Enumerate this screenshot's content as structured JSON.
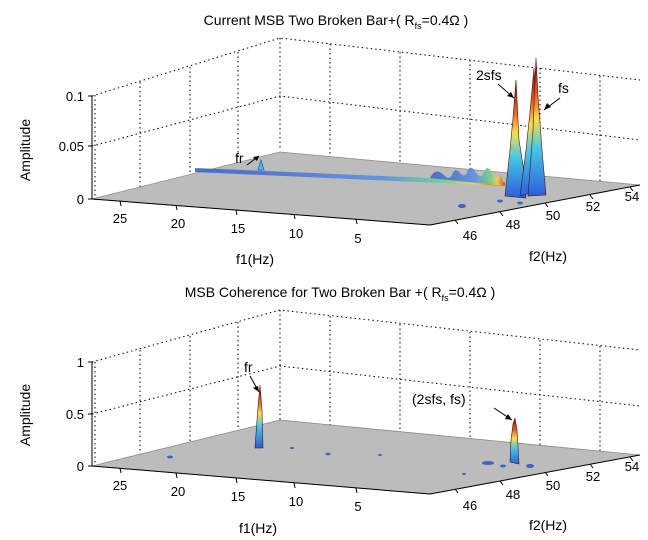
{
  "chart_data": [
    {
      "type": "surface",
      "title_main": "Current MSB Two Broken Bar+( R",
      "title_sub": "fs",
      "title_end": "=0.4Ω )",
      "xlabel": "f1(Hz)",
      "ylabel": "f2(Hz)",
      "zlabel": "Amplitude",
      "x_ticks": [
        "25",
        "20",
        "15",
        "10",
        "5"
      ],
      "y_ticks": [
        "46",
        "48",
        "50",
        "52",
        "54"
      ],
      "z_ticks": [
        "0",
        "0.05",
        "0.1"
      ],
      "xlim": [
        0,
        28
      ],
      "ylim": [
        45,
        55
      ],
      "zlim": [
        0,
        0.12
      ],
      "peaks": [
        {
          "label": "fr",
          "f1": 15,
          "f2": 46,
          "amplitude": 0.012
        },
        {
          "label": "2sfs",
          "f1": 2,
          "f2": 48,
          "amplitude": 0.085
        },
        {
          "label": "fs",
          "f1": 1,
          "f2": 50,
          "amplitude": 0.12
        }
      ]
    },
    {
      "type": "surface",
      "title_main": "MSB Coherence for Two Broken Bar +( R",
      "title_sub": "fs",
      "title_end": "=0.4Ω )",
      "xlabel": "f1(Hz)",
      "ylabel": "f2(Hz)",
      "zlabel": "Amplitude",
      "x_ticks": [
        "25",
        "20",
        "15",
        "10",
        "5"
      ],
      "y_ticks": [
        "46",
        "48",
        "50",
        "52",
        "54"
      ],
      "z_ticks": [
        "0",
        "0.5",
        "1"
      ],
      "xlim": [
        0,
        28
      ],
      "ylim": [
        45,
        55
      ],
      "zlim": [
        0,
        1
      ],
      "peaks": [
        {
          "label": "fr",
          "f1": 15,
          "f2": 46,
          "amplitude": 0.75
        },
        {
          "label": "(2sfs, fs)",
          "f1": 2,
          "f2": 48,
          "amplitude": 0.45
        }
      ]
    }
  ]
}
